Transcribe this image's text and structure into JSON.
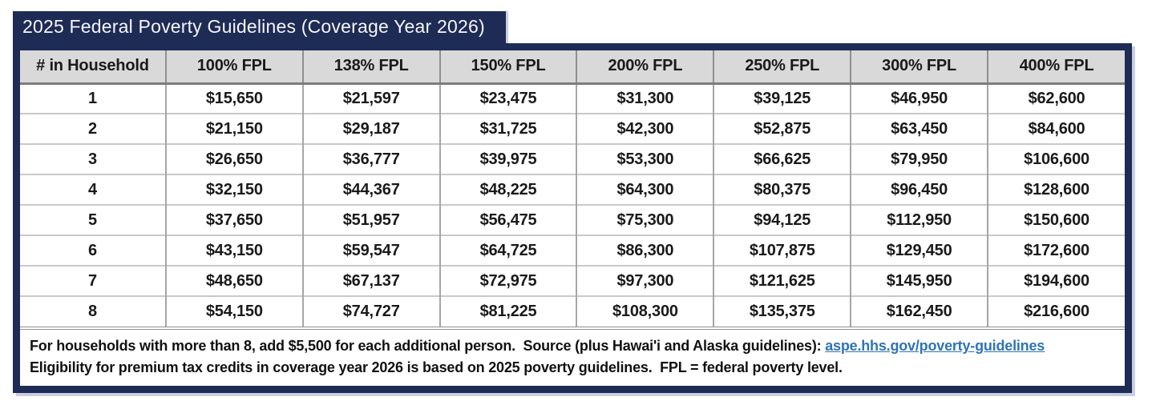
{
  "title": "2025 Federal Poverty Guidelines (Coverage Year 2026)",
  "colors": {
    "navy": "#1e2b55",
    "header_bg": "#d9d9d9",
    "link_blue": "#2e74b5"
  },
  "table": {
    "columns": [
      "# in Household",
      "100% FPL",
      "138% FPL",
      "150% FPL",
      "200% FPL",
      "250% FPL",
      "300% FPL",
      "400% FPL"
    ],
    "rows": [
      [
        "1",
        "$15,650",
        "$21,597",
        "$23,475",
        "$31,300",
        "$39,125",
        "$46,950",
        "$62,600"
      ],
      [
        "2",
        "$21,150",
        "$29,187",
        "$31,725",
        "$42,300",
        "$52,875",
        "$63,450",
        "$84,600"
      ],
      [
        "3",
        "$26,650",
        "$36,777",
        "$39,975",
        "$53,300",
        "$66,625",
        "$79,950",
        "$106,600"
      ],
      [
        "4",
        "$32,150",
        "$44,367",
        "$48,225",
        "$64,300",
        "$80,375",
        "$96,450",
        "$128,600"
      ],
      [
        "5",
        "$37,650",
        "$51,957",
        "$56,475",
        "$75,300",
        "$94,125",
        "$112,950",
        "$150,600"
      ],
      [
        "6",
        "$43,150",
        "$59,547",
        "$64,725",
        "$86,300",
        "$107,875",
        "$129,450",
        "$172,600"
      ],
      [
        "7",
        "$48,650",
        "$67,137",
        "$72,975",
        "$97,300",
        "$121,625",
        "$145,950",
        "$194,600"
      ],
      [
        "8",
        "$54,150",
        "$74,727",
        "$81,225",
        "$108,300",
        "$135,375",
        "$162,450",
        "$216,600"
      ]
    ]
  },
  "footnote": {
    "line1_before": "For households with more than 8, add $5,500 for each additional person.  Source (plus Hawai'i and Alaska guidelines): ",
    "line1_link": "aspe.hhs.gov/poverty-guidelines",
    "line2": "Eligibility for premium tax credits in coverage year 2026 is based on 2025 poverty guidelines.  FPL = federal poverty level."
  }
}
